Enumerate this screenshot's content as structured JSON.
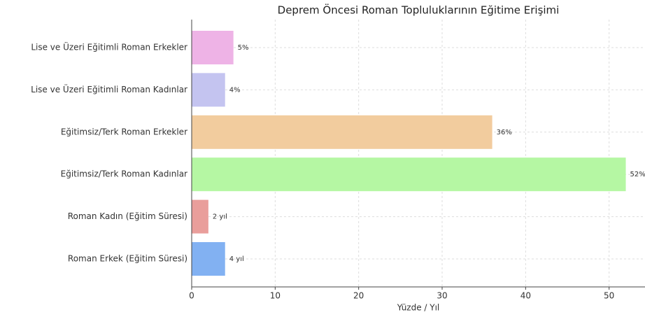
{
  "chart_data": {
    "type": "bar",
    "orientation": "horizontal",
    "title": "Deprem Öncesi Roman Topluluklarının Eğitime Erişimi",
    "x_label": "Yüzde / Yıl",
    "categories": [
      "Lise ve Üzeri Eğitimli Roman Erkekler",
      "Lise ve Üzeri Eğitimli Roman Kadınlar",
      "Eğitimsiz/Terk Roman Erkekler",
      "Eğitimsiz/Terk Roman Kadınlar",
      "Roman Kadın (Eğitim Süresi)",
      "Roman Erkek (Eğitim Süresi)"
    ],
    "values": [
      5,
      4,
      36,
      52,
      2,
      4
    ],
    "value_labels": [
      "5%",
      "4%",
      "36%",
      "52%",
      "2 yıl",
      "4 yıl"
    ],
    "colors": [
      "#eeb3e6",
      "#c4c4f0",
      "#f2cc9e",
      "#b5f7a3",
      "#e99e9b",
      "#82b1f2"
    ],
    "xlim": [
      0,
      54.3
    ],
    "xticks": [
      0,
      10,
      20,
      30,
      40,
      50
    ],
    "grid": true
  }
}
